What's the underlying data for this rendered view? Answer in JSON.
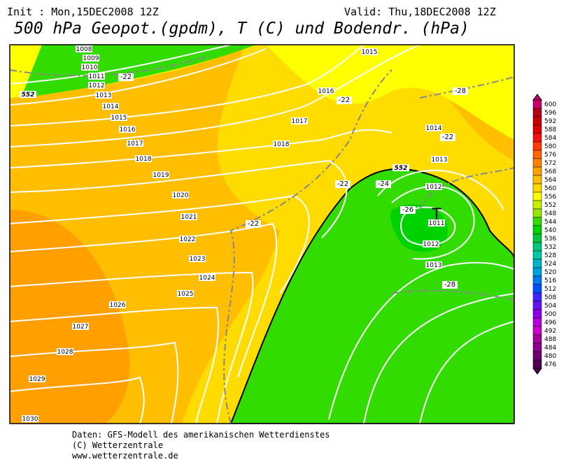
{
  "header": {
    "init": "Init : Mon,15DEC2008 12Z",
    "valid": "Valid: Thu,18DEC2008 12Z",
    "title": "500 hPa Geopot.(gpdm), T (C) und Bodendr. (hPa)"
  },
  "map": {
    "isobar_labels": [
      "1008",
      "1009",
      "1010",
      "1011",
      "1012",
      "1013",
      "1014",
      "1015",
      "1016",
      "1017",
      "1018",
      "1019",
      "1020",
      "1021",
      "1022",
      "1023",
      "1024",
      "1025",
      "1026",
      "1027",
      "1028",
      "1029",
      "1030",
      "1015",
      "1016",
      "1017",
      "1018",
      "1014",
      "1013",
      "1012",
      "1011",
      "1012",
      "1013"
    ],
    "temperature_labels": [
      "-22",
      "-22",
      "-22",
      "-22",
      "-22",
      "-24",
      "-26",
      "-28",
      "-28"
    ],
    "height_labels": [
      "552",
      "552"
    ],
    "low_marker": "T"
  },
  "legend": {
    "ticks": [
      600,
      596,
      592,
      588,
      584,
      580,
      576,
      572,
      568,
      564,
      560,
      556,
      552,
      548,
      544,
      540,
      536,
      532,
      528,
      524,
      520,
      516,
      512,
      508,
      504,
      500,
      496,
      492,
      488,
      484,
      480,
      476
    ],
    "colors": [
      "#c8006e",
      "#b4001e",
      "#c80000",
      "#dc0000",
      "#f01414",
      "#ff3c00",
      "#ff6400",
      "#ff8200",
      "#ffa000",
      "#ffbe00",
      "#ffdc00",
      "#ffff00",
      "#c8f000",
      "#96e600",
      "#32dc00",
      "#00d200",
      "#00c83c",
      "#00c878",
      "#00c8a0",
      "#00b4c8",
      "#00a0dc",
      "#0078f0",
      "#0050ff",
      "#3c28ff",
      "#6414f0",
      "#8c00e6",
      "#b400dc",
      "#c800c8",
      "#a000a0",
      "#8c008c",
      "#6e006e",
      "#500050"
    ]
  },
  "footer": {
    "lines": [
      "Daten: GFS-Modell des amerikanischen Wetterdienstes",
      "(C) Wetterzentrale",
      "www.wetterzentrale.de"
    ]
  }
}
